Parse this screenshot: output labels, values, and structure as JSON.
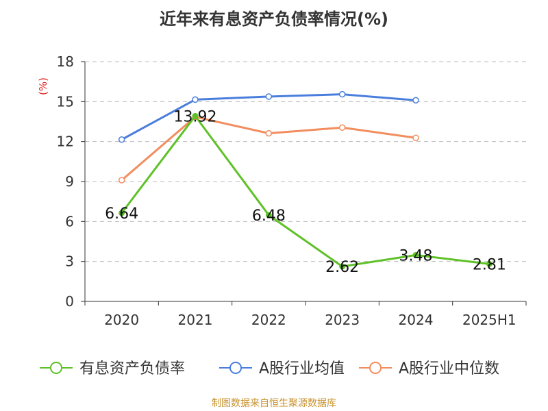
{
  "title": "近年来有息资产负债率情况(%)",
  "source_note": "制图数据来自恒生聚源数据库",
  "chart_data": {
    "type": "line",
    "title": "近年来有息资产负债率情况(%)",
    "ylabel": "(%)",
    "xlabel": "",
    "categories": [
      "2020",
      "2021",
      "2022",
      "2023",
      "2024",
      "2025H1"
    ],
    "ylim": [
      0,
      18
    ],
    "yticks": [
      0,
      3,
      6,
      9,
      12,
      15,
      18
    ],
    "grid": true,
    "legend_position": "bottom",
    "series": [
      {
        "name": "有息资产负债率",
        "color": "#5ec127",
        "values": [
          6.64,
          13.92,
          6.48,
          2.62,
          3.48,
          2.81
        ],
        "labels": [
          "6.64",
          "13.92",
          "6.48",
          "2.62",
          "3.48",
          "2.81"
        ],
        "show_labels": true
      },
      {
        "name": "A股行业均值",
        "color": "#4a7edc",
        "values": [
          12.15,
          15.15,
          15.38,
          15.55,
          15.1,
          null
        ],
        "show_labels": false
      },
      {
        "name": "A股行业中位数",
        "color": "#f28d5e",
        "values": [
          9.1,
          13.85,
          12.62,
          13.05,
          12.28,
          null
        ],
        "show_labels": false
      }
    ]
  }
}
